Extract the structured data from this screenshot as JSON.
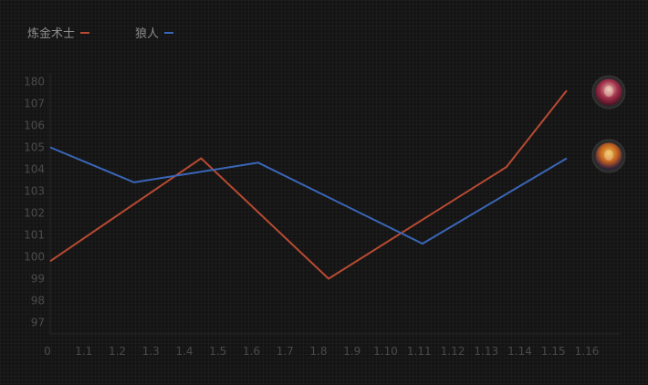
{
  "legend": [
    {
      "label": "炼金术士",
      "color": "#b84a32"
    },
    {
      "label": "狼人",
      "color": "#3a66b8"
    }
  ],
  "chart_data": {
    "type": "line",
    "x_ticks": [
      "0",
      "1.1",
      "1.2",
      "1.3",
      "1.4",
      "1.5",
      "1.6",
      "1.7",
      "1.8",
      "1.9",
      "1.10",
      "1.11",
      "1.12",
      "1.13",
      "1.14",
      "1.15",
      "1.16"
    ],
    "y_ticks": [
      "97",
      "98",
      "99",
      "100",
      "101",
      "102",
      "103",
      "104",
      "105",
      "106",
      "107",
      "180"
    ],
    "y_scale": "categorical (evenly spaced tick labels)",
    "grid": false,
    "legend_position": "top-left",
    "series": [
      {
        "name": "炼金术士",
        "color": "#b84a32",
        "icon": "alchemist-hero-portrait",
        "points": [
          {
            "x": 0,
            "y": 99.8
          },
          {
            "x": 4.5,
            "y": 104.5
          },
          {
            "x": 8.3,
            "y": 99.0
          },
          {
            "x": 13.6,
            "y": 104.1
          },
          {
            "x": 15.4,
            "y": 107.6
          }
        ]
      },
      {
        "name": "狼人",
        "color": "#3a66b8",
        "icon": "lycan-hero-portrait",
        "points": [
          {
            "x": 0,
            "y": 105.0
          },
          {
            "x": 2.5,
            "y": 103.4
          },
          {
            "x": 6.2,
            "y": 104.3
          },
          {
            "x": 11.1,
            "y": 100.6
          },
          {
            "x": 15.4,
            "y": 104.5
          }
        ]
      }
    ]
  }
}
